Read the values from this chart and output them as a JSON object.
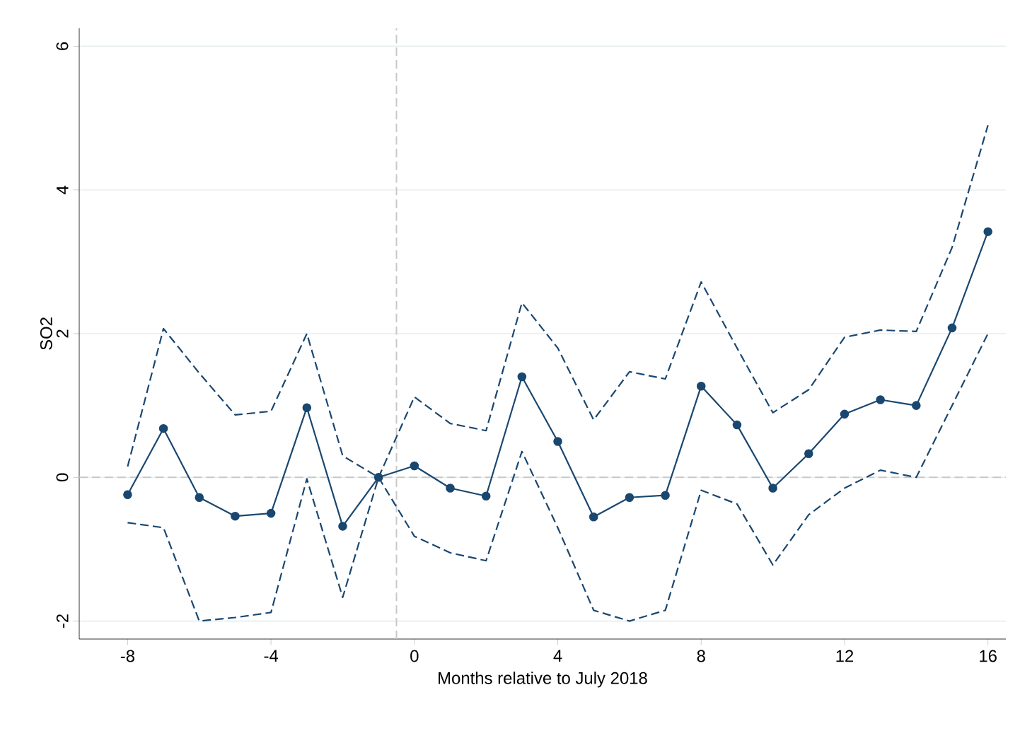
{
  "chart_data": {
    "type": "line",
    "xlabel": "Months relative to July 2018",
    "ylabel": "SO2",
    "x": [
      -8,
      -7,
      -6,
      -5,
      -4,
      -3,
      -2,
      -1,
      0,
      1,
      2,
      3,
      4,
      5,
      6,
      7,
      8,
      9,
      10,
      11,
      12,
      13,
      14,
      15,
      16
    ],
    "series": [
      {
        "color": "#1a476f",
        "marker": "circle",
        "line_style": "solid",
        "values": [
          -0.24,
          0.68,
          -0.28,
          -0.54,
          -0.5,
          0.97,
          -0.68,
          0,
          0.16,
          -0.15,
          -0.26,
          1.4,
          0.5,
          -0.55,
          -0.28,
          -0.25,
          1.27,
          0.73,
          -0.15,
          0.33,
          0.88,
          1.08,
          1.0,
          2.08,
          3.42
        ]
      },
      {
        "color": "#1a476f",
        "marker": "none",
        "line_style": "dashed",
        "values": [
          0.15,
          2.07,
          1.45,
          0.87,
          0.92,
          2.0,
          0.3,
          0,
          1.12,
          0.75,
          0.65,
          2.43,
          1.8,
          0.8,
          1.47,
          1.37,
          2.72,
          1.8,
          0.9,
          1.22,
          1.95,
          2.05,
          2.03,
          3.2,
          4.9
        ]
      },
      {
        "color": "#1a476f",
        "marker": "none",
        "line_style": "dashed",
        "values": [
          -0.63,
          -0.7,
          -2.0,
          -1.95,
          -1.88,
          -0.02,
          -1.67,
          0,
          -0.82,
          -1.05,
          -1.16,
          0.36,
          -0.7,
          -1.85,
          -2.0,
          -1.85,
          -0.18,
          -0.37,
          -1.22,
          -0.52,
          -0.15,
          0.1,
          0.0,
          1.0,
          2.0
        ]
      }
    ],
    "xlim": [
      -9.35,
      16.5
    ],
    "ylim": [
      -2.25,
      6.25
    ],
    "xticks": [
      -8,
      -4,
      0,
      4,
      8,
      12,
      16
    ],
    "yticks": [
      -2,
      0,
      2,
      4,
      6
    ],
    "grid": "y",
    "ref_lines": [
      {
        "axis": "y",
        "value": 0,
        "color": "#c8c8c8",
        "line_style": "dashed"
      },
      {
        "axis": "x",
        "value": -0.5,
        "color": "#c8c8c8",
        "line_style": "dashed"
      }
    ]
  }
}
